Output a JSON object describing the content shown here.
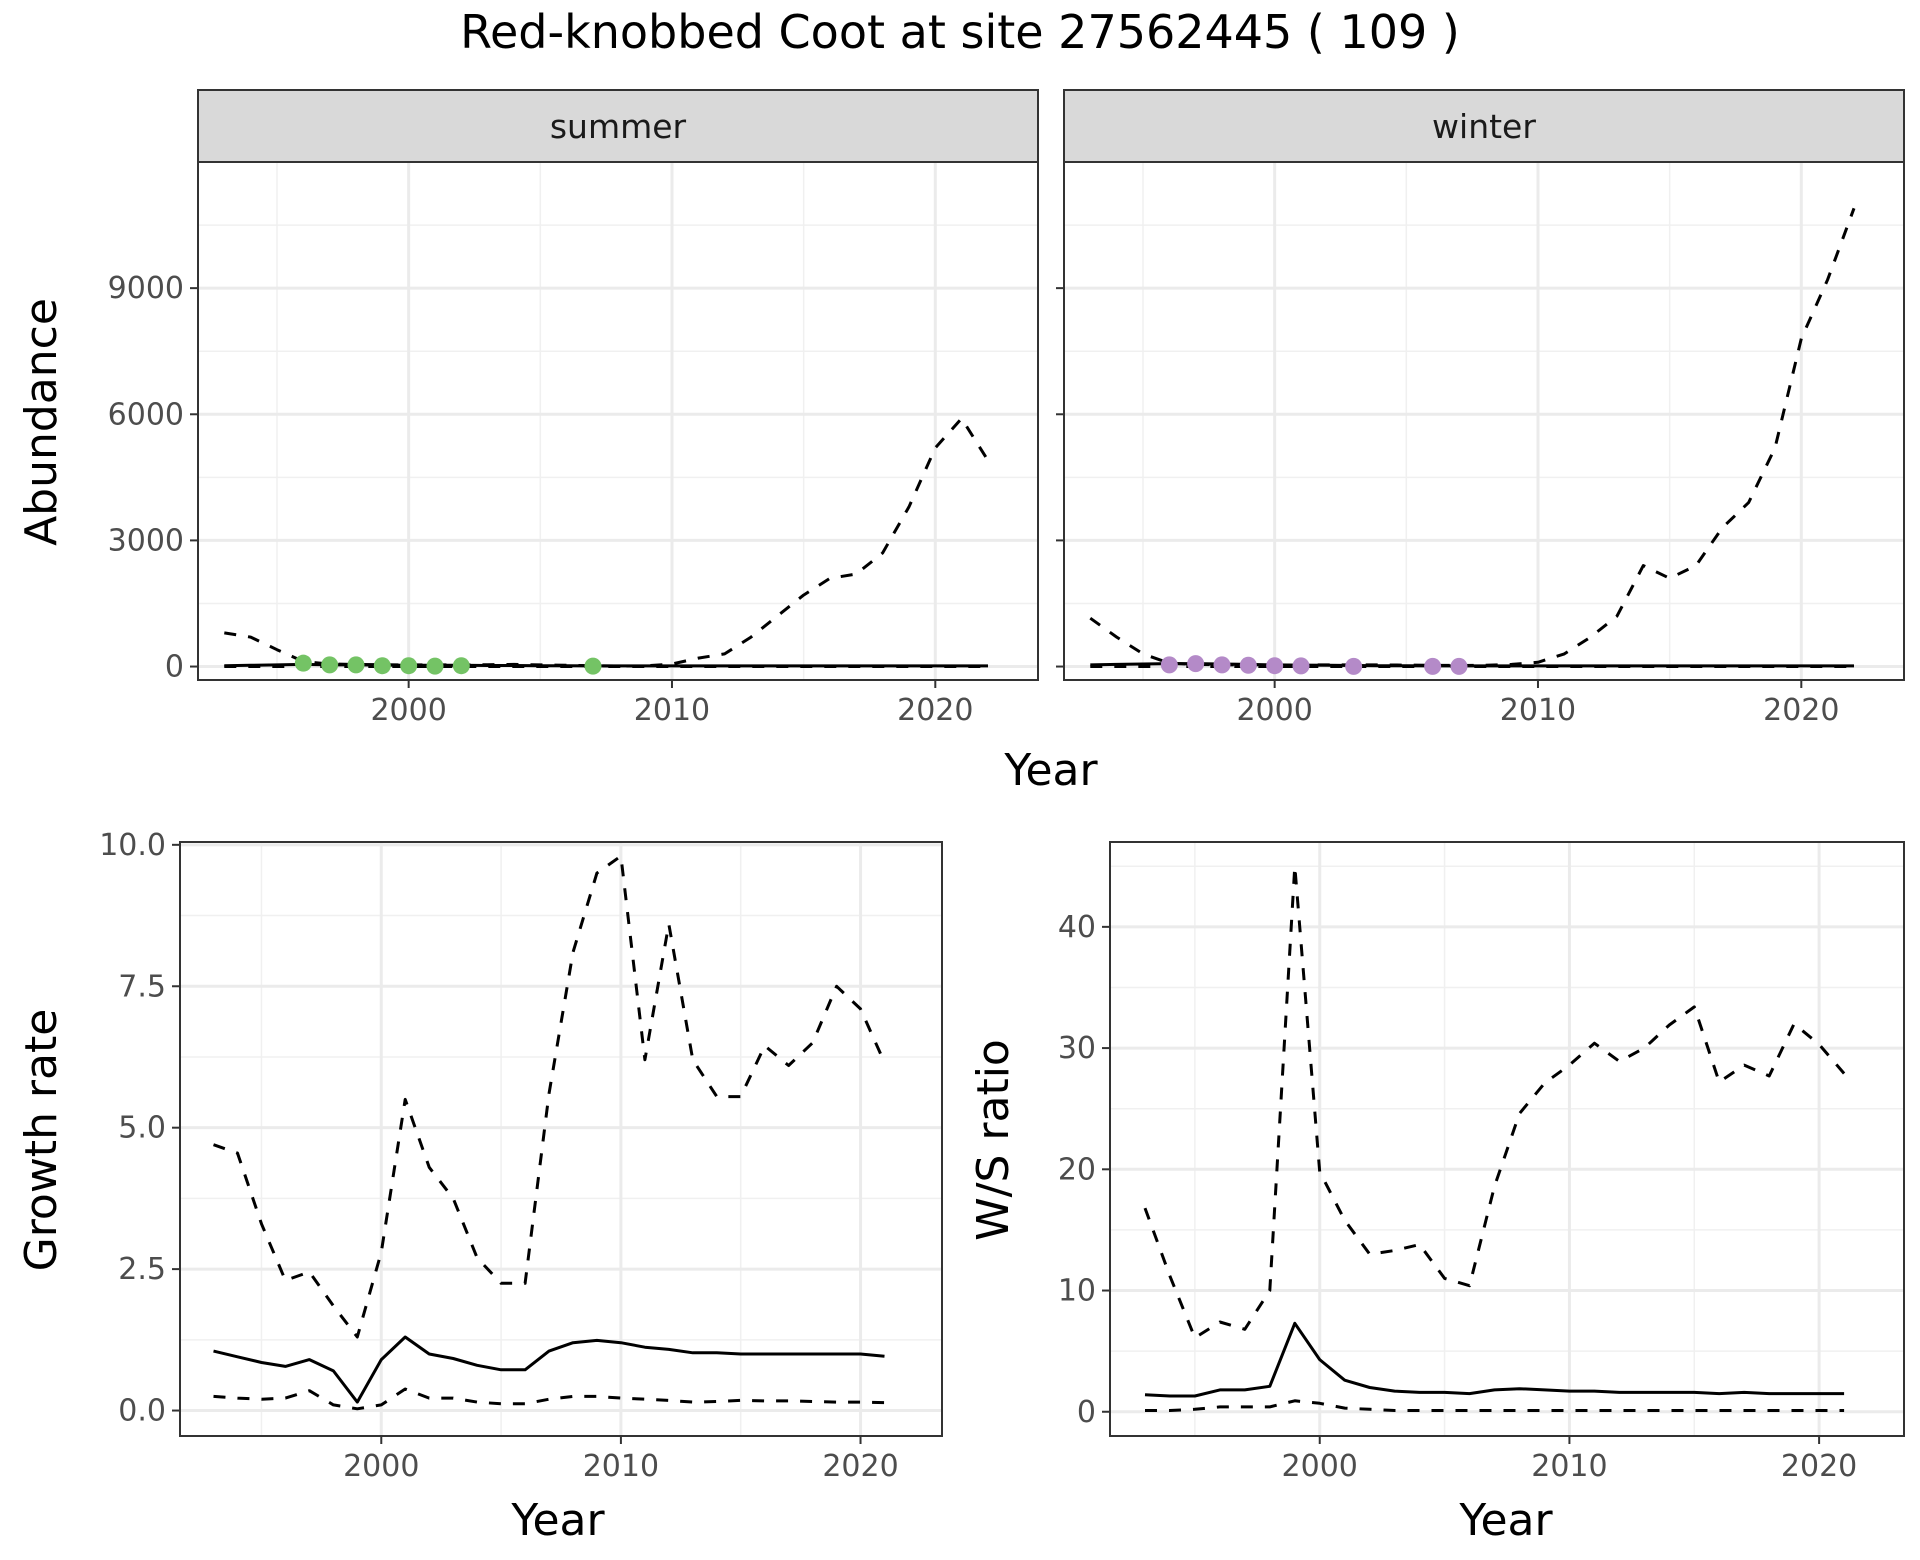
{
  "title": "Red-knobbed Coot at site 27562445 ( 109 )",
  "abundance_panel": {
    "xlabel": "Year",
    "ylabel": "Abundance",
    "facets": [
      "summer",
      "winter"
    ]
  },
  "growth_panel": {
    "xlabel": "Year",
    "ylabel": "Growth rate"
  },
  "ratio_panel": {
    "xlabel": "Year",
    "ylabel": "W/S ratio"
  },
  "colors": {
    "summer_points": "#74c365",
    "winter_points": "#b48ac8",
    "line": "#000000"
  },
  "chart_data": [
    {
      "type": "line",
      "facet": "summer",
      "xlabel": "Year",
      "ylabel": "Abundance",
      "xlim": [
        1992,
        2023.9
      ],
      "ylim": [
        -320,
        12000
      ],
      "xticks": [
        2000,
        2010,
        2020
      ],
      "yticks": [
        0,
        3000,
        6000,
        9000
      ],
      "grid": true,
      "series": [
        {
          "style": "solid",
          "x": [
            1993,
            1994,
            1995,
            1996,
            1997,
            1998,
            1999,
            2000,
            2001,
            2002,
            2003,
            2004,
            2005,
            2006,
            2007,
            2008,
            2009,
            2010,
            2011,
            2012,
            2013,
            2014,
            2015,
            2016,
            2017,
            2018,
            2019,
            2020,
            2021,
            2022
          ],
          "y": [
            20,
            30,
            40,
            50,
            40,
            40,
            35,
            30,
            30,
            30,
            25,
            25,
            20,
            20,
            15,
            15,
            15,
            15,
            15,
            15,
            15,
            15,
            15,
            15,
            15,
            15,
            15,
            15,
            15,
            15
          ]
        },
        {
          "style": "dashed",
          "x": [
            1993,
            1994,
            1995,
            1996,
            1997,
            1998,
            1999,
            2000,
            2001,
            2002,
            2003,
            2004,
            2005,
            2006,
            2007,
            2008,
            2009,
            2010,
            2011,
            2012,
            2013,
            2014,
            2015,
            2016,
            2017,
            2018,
            2019,
            2020,
            2021,
            2022
          ],
          "y": [
            800,
            700,
            400,
            120,
            60,
            50,
            45,
            40,
            40,
            40,
            45,
            50,
            40,
            30,
            20,
            10,
            15,
            60,
            200,
            300,
            700,
            1200,
            1700,
            2100,
            2200,
            2700,
            3800,
            5200,
            5900,
            4900
          ]
        },
        {
          "style": "dashed",
          "x": [
            1993,
            1995,
            2000,
            2005,
            2010,
            2015,
            2022
          ],
          "y": [
            1,
            1,
            1,
            1,
            1,
            1,
            1
          ]
        },
        {
          "style": "points",
          "x": [
            1996,
            1997,
            1998,
            1999,
            2000,
            2001,
            2002,
            2007
          ],
          "y": [
            80,
            40,
            40,
            20,
            20,
            10,
            20,
            10
          ]
        }
      ]
    },
    {
      "type": "line",
      "facet": "winter",
      "xlabel": "Year",
      "ylabel": "Abundance",
      "xlim": [
        1992,
        2023.9
      ],
      "ylim": [
        -320,
        12000
      ],
      "xticks": [
        2000,
        2010,
        2020
      ],
      "yticks": [
        0,
        3000,
        6000,
        9000
      ],
      "grid": true,
      "series": [
        {
          "style": "solid",
          "x": [
            1993,
            1994,
            1995,
            1996,
            1997,
            1998,
            1999,
            2000,
            2001,
            2002,
            2003,
            2004,
            2005,
            2006,
            2007,
            2008,
            2009,
            2010,
            2011,
            2012,
            2013,
            2014,
            2015,
            2016,
            2017,
            2018,
            2019,
            2020,
            2021,
            2022
          ],
          "y": [
            40,
            50,
            60,
            70,
            70,
            60,
            50,
            40,
            35,
            30,
            25,
            20,
            20,
            15,
            15,
            15,
            15,
            15,
            15,
            15,
            15,
            15,
            15,
            15,
            15,
            15,
            15,
            15,
            15,
            15
          ]
        },
        {
          "style": "dashed",
          "x": [
            1993,
            1994,
            1995,
            1996,
            1997,
            1998,
            1999,
            2000,
            2001,
            2002,
            2003,
            2004,
            2005,
            2006,
            2007,
            2008,
            2009,
            2010,
            2011,
            2012,
            2013,
            2014,
            2015,
            2016,
            2017,
            2018,
            2019,
            2020,
            2021,
            2022
          ],
          "y": [
            1150,
            700,
            300,
            80,
            50,
            40,
            40,
            40,
            40,
            40,
            40,
            40,
            35,
            30,
            25,
            30,
            50,
            100,
            300,
            700,
            1200,
            2400,
            2100,
            2400,
            3300,
            3900,
            5200,
            7800,
            9200,
            10900
          ]
        },
        {
          "style": "dashed",
          "x": [
            1993,
            1995,
            2000,
            2005,
            2010,
            2015,
            2022
          ],
          "y": [
            1,
            1,
            1,
            1,
            1,
            1,
            1
          ]
        },
        {
          "style": "points",
          "x": [
            1996,
            1997,
            1998,
            1999,
            2000,
            2001,
            2003,
            2006,
            2007
          ],
          "y": [
            40,
            70,
            40,
            30,
            20,
            15,
            5,
            5,
            5
          ]
        }
      ]
    },
    {
      "type": "line",
      "xlabel": "Year",
      "ylabel": "Growth rate",
      "xlim": [
        1991.6,
        2023.4
      ],
      "ylim": [
        -0.45,
        10.05
      ],
      "xticks": [
        2000,
        2010,
        2020
      ],
      "yticks": [
        0.0,
        2.5,
        5.0,
        7.5,
        10.0
      ],
      "ytick_labels": [
        "0.0",
        "2.5",
        "5.0",
        "7.5",
        "10.0"
      ],
      "grid": true,
      "series": [
        {
          "style": "solid",
          "x": [
            1993,
            1994,
            1995,
            1996,
            1997,
            1998,
            1999,
            2000,
            2001,
            2002,
            2003,
            2004,
            2005,
            2006,
            2007,
            2008,
            2009,
            2010,
            2011,
            2012,
            2013,
            2014,
            2015,
            2016,
            2017,
            2018,
            2019,
            2020,
            2021
          ],
          "y": [
            1.05,
            0.95,
            0.85,
            0.78,
            0.9,
            0.7,
            0.15,
            0.9,
            1.3,
            1.0,
            0.92,
            0.8,
            0.72,
            0.72,
            1.05,
            1.2,
            1.24,
            1.2,
            1.12,
            1.08,
            1.02,
            1.02,
            1.0,
            1.0,
            1.0,
            1.0,
            1.0,
            1.0,
            0.96
          ]
        },
        {
          "style": "dashed",
          "x": [
            1993,
            1994,
            1995,
            1996,
            1997,
            1998,
            1999,
            2000,
            2001,
            2002,
            2003,
            2004,
            2005,
            2006,
            2007,
            2008,
            2009,
            2010,
            2011,
            2012,
            2013,
            2014,
            2015,
            2016,
            2017,
            2018,
            2019,
            2020,
            2021
          ],
          "y": [
            4.7,
            4.55,
            3.3,
            2.3,
            2.45,
            1.85,
            1.3,
            2.8,
            5.5,
            4.3,
            3.75,
            2.7,
            2.25,
            2.25,
            5.6,
            8.1,
            9.5,
            9.8,
            6.2,
            8.6,
            6.2,
            5.55,
            5.55,
            6.45,
            6.1,
            6.5,
            7.5,
            7.1,
            6.15
          ]
        },
        {
          "style": "dashed",
          "x": [
            1993,
            1994,
            1995,
            1996,
            1997,
            1998,
            1999,
            2000,
            2001,
            2002,
            2003,
            2004,
            2005,
            2006,
            2007,
            2008,
            2009,
            2010,
            2011,
            2012,
            2013,
            2014,
            2015,
            2016,
            2017,
            2018,
            2019,
            2020,
            2021
          ],
          "y": [
            0.25,
            0.22,
            0.2,
            0.22,
            0.35,
            0.1,
            0.03,
            0.1,
            0.38,
            0.22,
            0.22,
            0.15,
            0.12,
            0.12,
            0.2,
            0.25,
            0.25,
            0.22,
            0.2,
            0.18,
            0.15,
            0.16,
            0.18,
            0.17,
            0.17,
            0.16,
            0.15,
            0.15,
            0.14
          ]
        }
      ]
    },
    {
      "type": "line",
      "xlabel": "Year",
      "ylabel": "W/S ratio",
      "xlim": [
        1991.6,
        2023.4
      ],
      "ylim": [
        -2,
        47
      ],
      "xticks": [
        2000,
        2010,
        2020
      ],
      "yticks": [
        0,
        10,
        20,
        30,
        40
      ],
      "grid": true,
      "series": [
        {
          "style": "solid",
          "x": [
            1993,
            1994,
            1995,
            1996,
            1997,
            1998,
            1999,
            2000,
            2001,
            2002,
            2003,
            2004,
            2005,
            2006,
            2007,
            2008,
            2009,
            2010,
            2011,
            2012,
            2013,
            2014,
            2015,
            2016,
            2017,
            2018,
            2019,
            2020,
            2021
          ],
          "y": [
            1.4,
            1.3,
            1.3,
            1.8,
            1.8,
            2.1,
            7.3,
            4.3,
            2.6,
            2.0,
            1.7,
            1.6,
            1.6,
            1.5,
            1.8,
            1.9,
            1.8,
            1.7,
            1.7,
            1.6,
            1.6,
            1.6,
            1.6,
            1.5,
            1.6,
            1.5,
            1.5,
            1.5,
            1.5
          ]
        },
        {
          "style": "dashed",
          "x": [
            1993,
            1994,
            1995,
            1996,
            1997,
            1998,
            1999,
            2000,
            2001,
            2002,
            2003,
            2004,
            2005,
            2006,
            2007,
            2008,
            2009,
            2010,
            2011,
            2012,
            2013,
            2014,
            2015,
            2016,
            2017,
            2018,
            2019,
            2020,
            2021
          ],
          "y": [
            16.8,
            11.2,
            6.1,
            7.4,
            6.8,
            10.0,
            45.0,
            19.8,
            15.8,
            13.0,
            13.3,
            13.8,
            11.0,
            10.4,
            18.6,
            24.6,
            27.1,
            28.6,
            30.4,
            28.9,
            30.0,
            31.9,
            33.4,
            27.2,
            28.6,
            27.7,
            32.0,
            30.3,
            27.9
          ]
        },
        {
          "style": "dashed",
          "x": [
            1993,
            1994,
            1995,
            1996,
            1997,
            1998,
            1999,
            2000,
            2001,
            2002,
            2003,
            2004,
            2005,
            2006,
            2007,
            2008,
            2009,
            2010,
            2011,
            2012,
            2013,
            2014,
            2015,
            2016,
            2017,
            2018,
            2019,
            2020,
            2021
          ],
          "y": [
            0.1,
            0.1,
            0.2,
            0.4,
            0.4,
            0.4,
            0.9,
            0.7,
            0.3,
            0.2,
            0.1,
            0.1,
            0.1,
            0.1,
            0.1,
            0.1,
            0.1,
            0.1,
            0.1,
            0.1,
            0.1,
            0.1,
            0.1,
            0.1,
            0.1,
            0.1,
            0.1,
            0.1,
            0.1
          ]
        }
      ]
    }
  ]
}
